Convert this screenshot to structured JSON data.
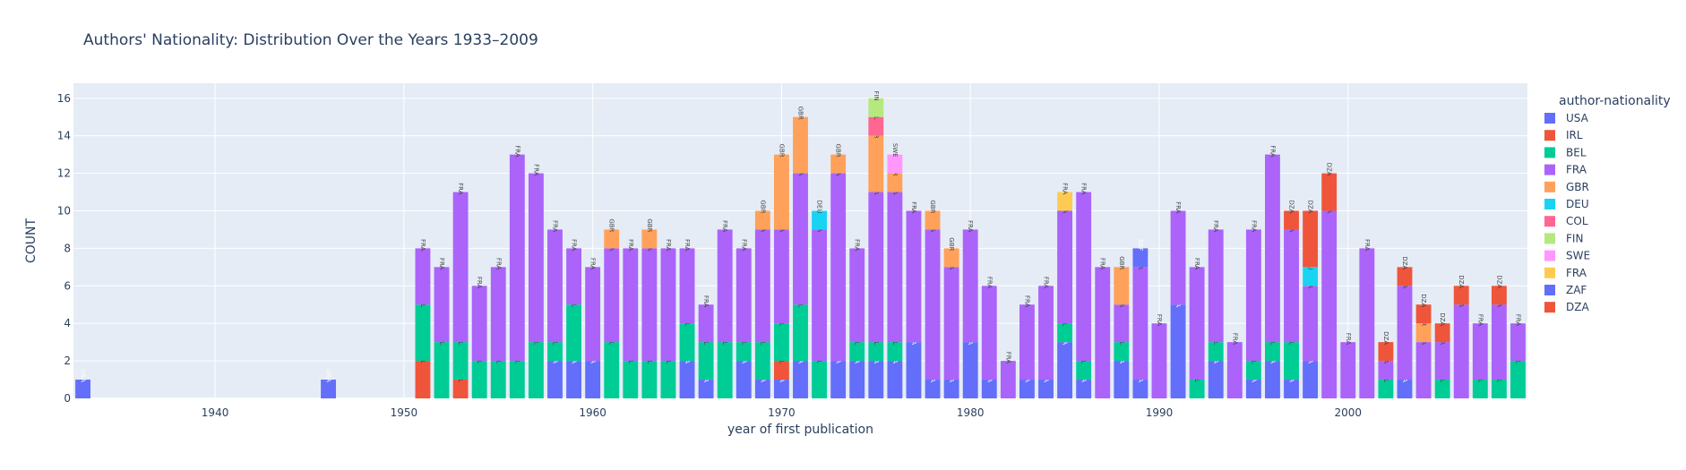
{
  "chart_data": {
    "type": "bar",
    "barmode": "stack",
    "title": "Authors' Nationality: Distribution Over the Years 1933–2009",
    "xlabel": "year of first publication",
    "ylabel": "COUNT",
    "xlim": [
      1932.5,
      2009.5
    ],
    "ylim": [
      0,
      16.8
    ],
    "xticks": [
      1940,
      1950,
      1960,
      1970,
      1980,
      1990,
      2000
    ],
    "yticks": [
      0,
      2,
      4,
      6,
      8,
      10,
      12,
      14,
      16
    ],
    "grid": true,
    "legend": {
      "title": "author-nationality",
      "placement": "right",
      "entries": [
        {
          "label": "USA",
          "color": "#636efa"
        },
        {
          "label": "IRL",
          "color": "#EF553B"
        },
        {
          "label": "BEL",
          "color": "#00cc96"
        },
        {
          "label": "FRA",
          "color": "#ab63fa"
        },
        {
          "label": "GBR",
          "color": "#FFA15A"
        },
        {
          "label": "DEU",
          "color": "#19d3f3"
        },
        {
          "label": "COL",
          "color": "#FF6692"
        },
        {
          "label": "FIN",
          "color": "#B6E880"
        },
        {
          "label": "SWE",
          "color": "#FF97FF"
        },
        {
          "label": "FRA",
          "color": "#FECB52"
        },
        {
          "label": "ZAF",
          "color": "#636efa"
        },
        {
          "label": "DZA",
          "color": "#EF553B"
        }
      ]
    },
    "data": [
      {
        "year": 1933,
        "stack": [
          [
            "USA",
            0,
            1
          ]
        ]
      },
      {
        "year": 1946,
        "stack": [
          [
            "USA",
            0,
            1
          ]
        ]
      },
      {
        "year": 1951,
        "stack": [
          [
            "IRL",
            1,
            2
          ],
          [
            "BEL",
            2,
            3
          ],
          [
            "FRA",
            3,
            3
          ]
        ]
      },
      {
        "year": 1952,
        "stack": [
          [
            "BEL",
            2,
            3
          ],
          [
            "FRA",
            3,
            4
          ]
        ]
      },
      {
        "year": 1953,
        "stack": [
          [
            "IRL",
            1,
            1
          ],
          [
            "BEL",
            2,
            2
          ],
          [
            "FRA",
            3,
            8
          ]
        ]
      },
      {
        "year": 1954,
        "stack": [
          [
            "BEL",
            2,
            2
          ],
          [
            "FRA",
            3,
            4
          ]
        ]
      },
      {
        "year": 1955,
        "stack": [
          [
            "BEL",
            2,
            2
          ],
          [
            "FRA",
            3,
            5
          ]
        ]
      },
      {
        "year": 1956,
        "stack": [
          [
            "BEL",
            2,
            2
          ],
          [
            "FRA",
            3,
            11
          ]
        ]
      },
      {
        "year": 1957,
        "stack": [
          [
            "BEL",
            2,
            3
          ],
          [
            "FRA",
            3,
            9
          ]
        ]
      },
      {
        "year": 1958,
        "stack": [
          [
            "USA",
            0,
            2
          ],
          [
            "BEL",
            2,
            1
          ],
          [
            "FRA",
            3,
            6
          ]
        ]
      },
      {
        "year": 1959,
        "stack": [
          [
            "USA",
            0,
            2
          ],
          [
            "BEL",
            2,
            3
          ],
          [
            "FRA",
            3,
            3
          ]
        ]
      },
      {
        "year": 1960,
        "stack": [
          [
            "USA",
            0,
            2
          ],
          [
            "FRA",
            3,
            5
          ]
        ]
      },
      {
        "year": 1961,
        "stack": [
          [
            "BEL",
            2,
            3
          ],
          [
            "FRA",
            3,
            5
          ],
          [
            "GBR",
            4,
            1
          ]
        ]
      },
      {
        "year": 1962,
        "stack": [
          [
            "BEL",
            2,
            2
          ],
          [
            "FRA",
            3,
            6
          ]
        ]
      },
      {
        "year": 1963,
        "stack": [
          [
            "BEL",
            2,
            2
          ],
          [
            "FRA",
            3,
            6
          ],
          [
            "GBR",
            4,
            1
          ]
        ]
      },
      {
        "year": 1964,
        "stack": [
          [
            "BEL",
            2,
            2
          ],
          [
            "FRA",
            3,
            6
          ]
        ]
      },
      {
        "year": 1965,
        "stack": [
          [
            "USA",
            0,
            2
          ],
          [
            "BEL",
            2,
            2
          ],
          [
            "FRA",
            3,
            4
          ]
        ]
      },
      {
        "year": 1966,
        "stack": [
          [
            "USA",
            0,
            1
          ],
          [
            "BEL",
            2,
            2
          ],
          [
            "FRA",
            3,
            2
          ]
        ]
      },
      {
        "year": 1967,
        "stack": [
          [
            "BEL",
            2,
            3
          ],
          [
            "FRA",
            3,
            6
          ]
        ]
      },
      {
        "year": 1968,
        "stack": [
          [
            "USA",
            0,
            2
          ],
          [
            "BEL",
            2,
            1
          ],
          [
            "FRA",
            3,
            5
          ]
        ]
      },
      {
        "year": 1969,
        "stack": [
          [
            "USA",
            0,
            1
          ],
          [
            "BEL",
            2,
            2
          ],
          [
            "FRA",
            3,
            6
          ],
          [
            "GBR",
            4,
            1
          ]
        ]
      },
      {
        "year": 1970,
        "stack": [
          [
            "USA",
            0,
            1
          ],
          [
            "IRL",
            1,
            1
          ],
          [
            "BEL",
            2,
            2
          ],
          [
            "FRA",
            3,
            5
          ],
          [
            "GBR",
            4,
            4
          ]
        ]
      },
      {
        "year": 1971,
        "stack": [
          [
            "USA",
            0,
            2
          ],
          [
            "BEL",
            2,
            3
          ],
          [
            "FRA",
            3,
            7
          ],
          [
            "GBR",
            4,
            3
          ]
        ]
      },
      {
        "year": 1972,
        "stack": [
          [
            "BEL",
            2,
            2
          ],
          [
            "FRA",
            3,
            7
          ],
          [
            "DEU",
            5,
            1
          ]
        ]
      },
      {
        "year": 1973,
        "stack": [
          [
            "USA",
            0,
            2
          ],
          [
            "FRA",
            3,
            10
          ],
          [
            "GBR",
            4,
            1
          ]
        ]
      },
      {
        "year": 1974,
        "stack": [
          [
            "USA",
            0,
            2
          ],
          [
            "BEL",
            2,
            1
          ],
          [
            "FRA",
            3,
            5
          ]
        ]
      },
      {
        "year": 1975,
        "stack": [
          [
            "USA",
            0,
            2
          ],
          [
            "BEL",
            2,
            1
          ],
          [
            "FRA",
            3,
            8
          ],
          [
            "GBR",
            4,
            3
          ],
          [
            "COL",
            6,
            1
          ],
          [
            "FIN",
            7,
            1
          ]
        ]
      },
      {
        "year": 1976,
        "stack": [
          [
            "USA",
            0,
            2
          ],
          [
            "BEL",
            2,
            1
          ],
          [
            "FRA",
            3,
            8
          ],
          [
            "GBR",
            4,
            1
          ],
          [
            "SWE",
            8,
            1
          ]
        ]
      },
      {
        "year": 1977,
        "stack": [
          [
            "USA",
            0,
            3
          ],
          [
            "FRA",
            3,
            7
          ]
        ]
      },
      {
        "year": 1978,
        "stack": [
          [
            "USA",
            0,
            1
          ],
          [
            "FRA",
            3,
            8
          ],
          [
            "GBR",
            4,
            1
          ]
        ]
      },
      {
        "year": 1979,
        "stack": [
          [
            "USA",
            0,
            1
          ],
          [
            "FRA",
            3,
            6
          ],
          [
            "GBR",
            4,
            1
          ]
        ]
      },
      {
        "year": 1980,
        "stack": [
          [
            "USA",
            0,
            3
          ],
          [
            "FRA",
            3,
            6
          ]
        ]
      },
      {
        "year": 1981,
        "stack": [
          [
            "USA",
            0,
            1
          ],
          [
            "FRA",
            3,
            5
          ]
        ]
      },
      {
        "year": 1982,
        "stack": [
          [
            "FRA",
            3,
            2
          ]
        ]
      },
      {
        "year": 1983,
        "stack": [
          [
            "USA",
            0,
            1
          ],
          [
            "FRA",
            3,
            4
          ]
        ]
      },
      {
        "year": 1984,
        "stack": [
          [
            "USA",
            0,
            1
          ],
          [
            "FRA",
            3,
            5
          ]
        ]
      },
      {
        "year": 1985,
        "stack": [
          [
            "USA",
            0,
            3
          ],
          [
            "BEL",
            2,
            1
          ],
          [
            "FRA",
            3,
            6
          ],
          [
            "FRA",
            9,
            1
          ]
        ]
      },
      {
        "year": 1986,
        "stack": [
          [
            "USA",
            0,
            1
          ],
          [
            "BEL",
            2,
            1
          ],
          [
            "FRA",
            3,
            9
          ]
        ]
      },
      {
        "year": 1987,
        "stack": [
          [
            "FRA",
            3,
            7
          ]
        ]
      },
      {
        "year": 1988,
        "stack": [
          [
            "USA",
            0,
            2
          ],
          [
            "BEL",
            2,
            1
          ],
          [
            "FRA",
            3,
            2
          ],
          [
            "GBR",
            4,
            2
          ]
        ]
      },
      {
        "year": 1989,
        "stack": [
          [
            "USA",
            0,
            1
          ],
          [
            "FRA",
            3,
            6
          ],
          [
            "ZAF",
            10,
            1
          ]
        ]
      },
      {
        "year": 1990,
        "stack": [
          [
            "FRA",
            3,
            4
          ]
        ]
      },
      {
        "year": 1991,
        "stack": [
          [
            "USA",
            0,
            5
          ],
          [
            "FRA",
            3,
            5
          ]
        ]
      },
      {
        "year": 1992,
        "stack": [
          [
            "BEL",
            2,
            1
          ],
          [
            "FRA",
            3,
            6
          ]
        ]
      },
      {
        "year": 1993,
        "stack": [
          [
            "USA",
            0,
            2
          ],
          [
            "BEL",
            2,
            1
          ],
          [
            "FRA",
            3,
            6
          ]
        ]
      },
      {
        "year": 1994,
        "stack": [
          [
            "FRA",
            3,
            3
          ]
        ]
      },
      {
        "year": 1995,
        "stack": [
          [
            "USA",
            0,
            1
          ],
          [
            "BEL",
            2,
            1
          ],
          [
            "FRA",
            3,
            7
          ]
        ]
      },
      {
        "year": 1996,
        "stack": [
          [
            "USA",
            0,
            2
          ],
          [
            "BEL",
            2,
            1
          ],
          [
            "FRA",
            3,
            10
          ]
        ]
      },
      {
        "year": 1997,
        "stack": [
          [
            "USA",
            0,
            1
          ],
          [
            "BEL",
            2,
            2
          ],
          [
            "FRA",
            3,
            6
          ],
          [
            "DZA",
            11,
            1
          ]
        ]
      },
      {
        "year": 1998,
        "stack": [
          [
            "USA",
            0,
            2
          ],
          [
            "FRA",
            3,
            4
          ],
          [
            "DEU",
            5,
            1
          ],
          [
            "DZA",
            11,
            3
          ]
        ]
      },
      {
        "year": 1999,
        "stack": [
          [
            "FRA",
            3,
            10
          ],
          [
            "DZA",
            11,
            2
          ]
        ]
      },
      {
        "year": 2000,
        "stack": [
          [
            "FRA",
            3,
            3
          ]
        ]
      },
      {
        "year": 2001,
        "stack": [
          [
            "FRA",
            3,
            8
          ]
        ]
      },
      {
        "year": 2002,
        "stack": [
          [
            "BEL",
            2,
            1
          ],
          [
            "FRA",
            3,
            1
          ],
          [
            "DZA",
            11,
            1
          ]
        ]
      },
      {
        "year": 2003,
        "stack": [
          [
            "USA",
            0,
            1
          ],
          [
            "FRA",
            3,
            5
          ],
          [
            "DZA",
            11,
            1
          ]
        ]
      },
      {
        "year": 2004,
        "stack": [
          [
            "FRA",
            3,
            3
          ],
          [
            "GBR",
            4,
            1
          ],
          [
            "DZA",
            11,
            1
          ]
        ]
      },
      {
        "year": 2005,
        "stack": [
          [
            "BEL",
            2,
            1
          ],
          [
            "FRA",
            3,
            2
          ],
          [
            "DZA",
            11,
            1
          ]
        ]
      },
      {
        "year": 2006,
        "stack": [
          [
            "FRA",
            3,
            5
          ],
          [
            "DZA",
            11,
            1
          ]
        ]
      },
      {
        "year": 2007,
        "stack": [
          [
            "BEL",
            2,
            1
          ],
          [
            "FRA",
            3,
            3
          ]
        ]
      },
      {
        "year": 2008,
        "stack": [
          [
            "BEL",
            2,
            1
          ],
          [
            "FRA",
            3,
            4
          ],
          [
            "DZA",
            11,
            1
          ]
        ]
      },
      {
        "year": 2009,
        "stack": [
          [
            "BEL",
            2,
            2
          ],
          [
            "FRA",
            3,
            2
          ]
        ]
      }
    ]
  }
}
